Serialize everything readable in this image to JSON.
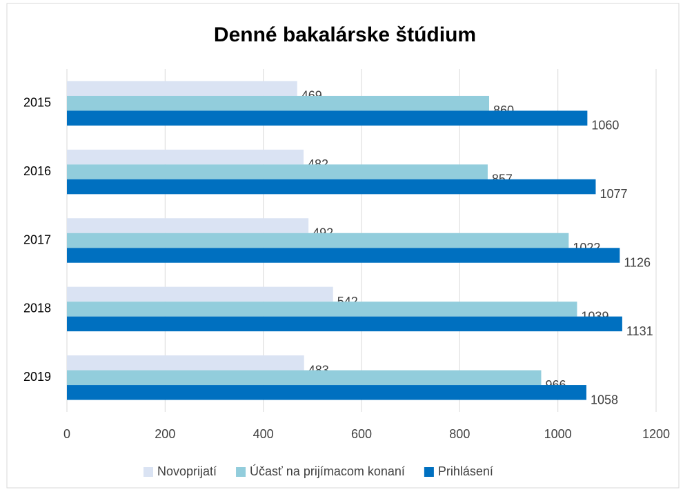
{
  "chart_data": {
    "type": "bar",
    "orientation": "horizontal",
    "title": "Denné bakalárske štúdium",
    "categories": [
      "2015",
      "2016",
      "2017",
      "2018",
      "2019"
    ],
    "series": [
      {
        "name": "Novoprijatí",
        "color": "#dae3f3",
        "values": [
          469,
          482,
          492,
          542,
          483
        ]
      },
      {
        "name": "Účasť na prijímacom konaní",
        "color": "#92cddc",
        "values": [
          860,
          857,
          1022,
          1039,
          966
        ]
      },
      {
        "name": "Prihlásení",
        "color": "#0070c0",
        "values": [
          1060,
          1077,
          1126,
          1131,
          1058
        ]
      }
    ],
    "xlim": [
      0,
      1200
    ],
    "xticks": [
      0,
      200,
      400,
      600,
      800,
      1000,
      1200
    ],
    "grid": true,
    "legend": "bottom"
  }
}
